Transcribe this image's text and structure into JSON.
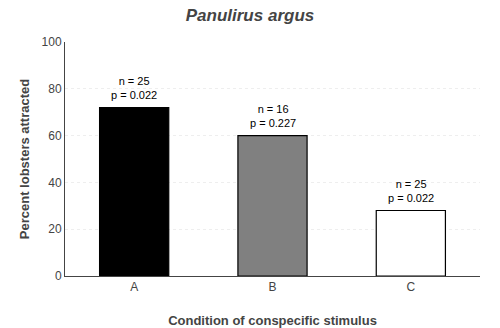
{
  "chart_data": {
    "type": "bar",
    "title": "Panulirus argus",
    "xlabel": "Condition of conspecific stimulus",
    "ylabel": "Percent lobsters attracted",
    "categories": [
      "A",
      "B",
      "C"
    ],
    "values": [
      72,
      60,
      28
    ],
    "colors": [
      "#000000",
      "#808080",
      "#ffffff"
    ],
    "ylim": [
      0,
      100
    ],
    "yticks": [
      0,
      20,
      40,
      60,
      80,
      100
    ],
    "grid": true,
    "annotations": [
      {
        "text": "n = 25\np = 0.022",
        "x": 0,
        "y": 74
      },
      {
        "text": "n = 16\np = 0.227",
        "x": 1,
        "y": 62
      },
      {
        "text": "n = 25\np = 0.022",
        "x": 2,
        "y": 30
      }
    ]
  }
}
